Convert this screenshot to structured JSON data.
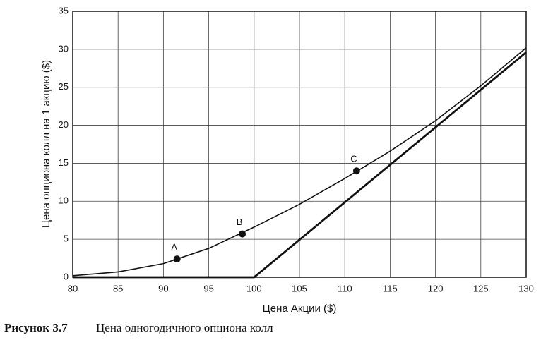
{
  "chart_data": {
    "type": "line",
    "xlabel": "Цена Акции ($)",
    "ylabel": "Цена опциона колл на 1 акцию ($)",
    "xlim": [
      80,
      130
    ],
    "xticks": [
      80,
      85,
      90,
      95,
      100,
      105,
      110,
      115,
      120,
      125,
      130
    ],
    "ylim": [
      0,
      35
    ],
    "yticks": [
      0,
      5,
      10,
      15,
      20,
      25,
      30,
      35
    ],
    "grid": true,
    "series": [
      {
        "color": "#111111",
        "line_width": 1.6,
        "x": [
          80,
          85,
          90,
          95,
          100,
          105,
          110,
          115,
          120,
          125,
          130
        ],
        "values": [
          0.2,
          0.7,
          1.8,
          3.8,
          6.6,
          9.6,
          13,
          16.6,
          20.6,
          25.2,
          30.2
        ]
      },
      {
        "color": "#111111",
        "line_width": 2.8,
        "x": [
          80,
          100,
          130
        ],
        "values": [
          0,
          0,
          29.6
        ]
      }
    ],
    "points": [
      {
        "label": "A",
        "x": 91.5,
        "y": 2.4
      },
      {
        "label": "B",
        "x": 98.7,
        "y": 5.7
      },
      {
        "label": "C",
        "x": 111.3,
        "y": 14
      }
    ],
    "point_color": "#111111"
  },
  "caption": {
    "label": "Рисунок 3.7",
    "text": "Цена одногодичного опциона колл"
  }
}
